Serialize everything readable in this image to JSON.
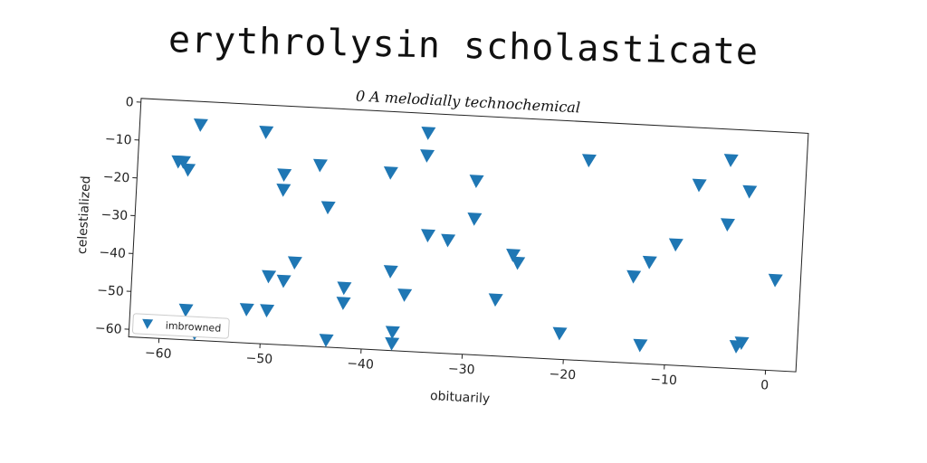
{
  "chart_data": {
    "type": "scatter",
    "title": "erythrolysin scholasticate",
    "subtitle": "0 A melodially technochemical",
    "xlabel": "obituarily",
    "ylabel": "celestialized",
    "xlim": [
      -63,
      3
    ],
    "ylim": [
      -62,
      1
    ],
    "xticks": [
      -60,
      -50,
      -40,
      -30,
      -20,
      -10,
      0
    ],
    "yticks": [
      0,
      -10,
      -20,
      -30,
      -40,
      -50,
      -60
    ],
    "xtick_labels": [
      "−60",
      "−50",
      "−40",
      "−30",
      "−20",
      "−10",
      "0"
    ],
    "ytick_labels": [
      "0",
      "−10",
      "−20",
      "−30",
      "−40",
      "−50",
      "−60"
    ],
    "grid": false,
    "legend_position": "lower-left",
    "marker": "triangle-down",
    "series": [
      {
        "name": "imbrowned",
        "color": "#1f77b4",
        "points": [
          [
            -58.5,
            -15
          ],
          [
            -59.0,
            -15
          ],
          [
            -58.0,
            -17
          ],
          [
            -57.0,
            -5
          ],
          [
            -50.5,
            -6
          ],
          [
            -48.5,
            -17
          ],
          [
            -48.5,
            -21
          ],
          [
            -45.0,
            -14
          ],
          [
            -44.0,
            -25
          ],
          [
            -38.0,
            -15
          ],
          [
            -34.5,
            -4
          ],
          [
            -34.5,
            -10
          ],
          [
            -34.0,
            -31
          ],
          [
            -32.0,
            -32
          ],
          [
            -29.5,
            -16
          ],
          [
            -29.5,
            -26
          ],
          [
            -25.5,
            -35
          ],
          [
            -25.0,
            -37
          ],
          [
            -27.0,
            -47
          ],
          [
            -18.5,
            -9
          ],
          [
            -20.5,
            -55
          ],
          [
            -13.5,
            -39
          ],
          [
            -12.0,
            -35
          ],
          [
            -9.5,
            -30
          ],
          [
            -7.5,
            -14
          ],
          [
            -12.5,
            -57
          ],
          [
            -4.5,
            -7
          ],
          [
            -4.5,
            -24
          ],
          [
            -2.5,
            -15
          ],
          [
            0.5,
            -38
          ],
          [
            -2.5,
            -55
          ],
          [
            -3.0,
            -56
          ],
          [
            -57.5,
            -54
          ],
          [
            -56.5,
            -60
          ],
          [
            -51.5,
            -53
          ],
          [
            -49.5,
            -53
          ],
          [
            -49.5,
            -44
          ],
          [
            -48.0,
            -45
          ],
          [
            -47.0,
            -40
          ],
          [
            -43.5,
            -60
          ],
          [
            -42.0,
            -46
          ],
          [
            -42.0,
            -50
          ],
          [
            -37.5,
            -41
          ],
          [
            -37.0,
            -57
          ],
          [
            -37.0,
            -60
          ],
          [
            -36.0,
            -47
          ]
        ]
      }
    ]
  }
}
